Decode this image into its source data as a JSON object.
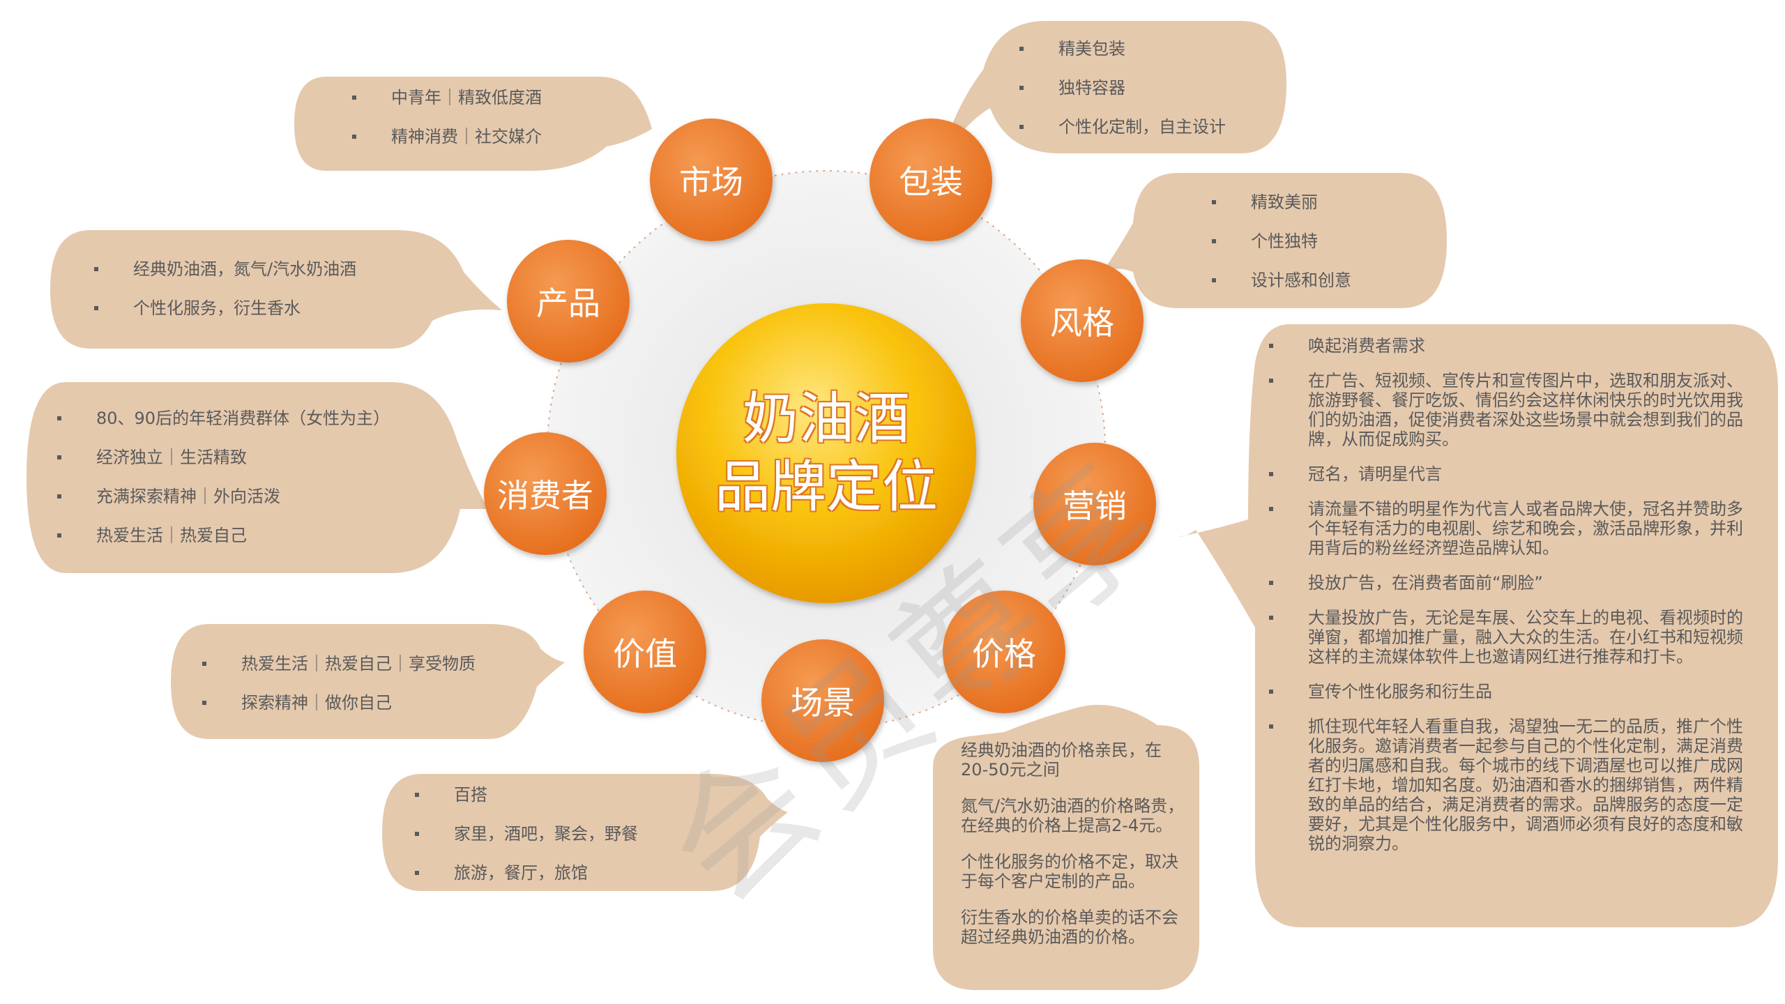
{
  "center": {
    "line1": "奶油酒",
    "line2": "品牌定位"
  },
  "watermark": "会员尊享",
  "nodes": {
    "market": "市场",
    "packaging": "包装",
    "product": "产品",
    "style": "风格",
    "consumer": "消费者",
    "marketing": "营销",
    "value": "价值",
    "scene": "场景",
    "price": "价格"
  },
  "notes": {
    "market": [
      "中青年｜精致低度酒",
      "精神消费｜社交媒介"
    ],
    "packaging": [
      "精美包装",
      "独特容器",
      "个性化定制，自主设计"
    ],
    "style": [
      "精致美丽",
      "个性独特",
      "设计感和创意"
    ],
    "product": [
      "经典奶油酒，氮气/汽水奶油酒",
      "个性化服务，衍生香水"
    ],
    "consumer": [
      "80、90后的年轻消费群体（女性为主）",
      "经济独立｜生活精致",
      "充满探索精神｜外向活泼",
      "热爱生活｜热爱自己"
    ],
    "value": [
      "热爱生活｜热爱自己｜享受物质",
      "探索精神｜做你自己"
    ],
    "scene": [
      "百搭",
      "家里，酒吧，聚会，野餐",
      "旅游，餐厅，旅馆"
    ],
    "price": [
      "经典奶油酒的价格亲民，在20-50元之间",
      "氮气/汽水奶油酒的价格略贵，在经典的价格上提高2-4元。",
      "个性化服务的价格不定，取决于每个客户定制的产品。",
      "衍生香水的价格单卖的话不会超过经典奶油酒的价格。"
    ],
    "marketing": [
      "唤起消费者需求",
      "在广告、短视频、宣传片和宣传图片中，选取和朋友派对、旅游野餐、餐厅吃饭、情侣约会这样休闲快乐的时光饮用我们的奶油酒，促使消费者深处这些场景中就会想到我们的品牌，从而促成购买。",
      "冠名，请明星代言",
      "请流量不错的明星作为代言人或者品牌大使，冠名并赞助多个年轻有活力的电视剧、综艺和晚会，激活品牌形象，并利用背后的粉丝经济塑造品牌认知。",
      "投放广告，在消费者面前“刷脸”",
      "大量投放广告，无论是车展、公交车上的电视、看视频时的弹窗，都增加推广量，融入大众的生活。在小红书和短视频这样的主流媒体软件上也邀请网红进行推荐和打卡。",
      "宣传个性化服务和衍生品",
      "抓住现代年轻人看重自我，渴望独一无二的品质，推广个性化服务。邀请消费者一起参与自己的个性化定制，满足消费者的归属感和自我。每个城市的线下调酒屋也可以推广成网红打卡地，增加知名度。奶油酒和香水的捆绑销售，两件精致的单品的结合，满足消费者的需求。品牌服务的态度一定要好，尤其是个性化服务中，调酒师必须有良好的态度和敏锐的洞察力。"
    ]
  },
  "colors": {
    "bubble": "#e5c9ad",
    "node": "#ec7d31",
    "center_gold": "#f6b800",
    "text": "#5a5a5a"
  }
}
